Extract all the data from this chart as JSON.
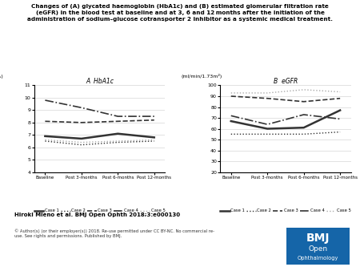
{
  "title": "Changes of (A) glycated haemoglobin (HbA1c) and (B) estimated glomerular filtration rate\n(eGFR) in the blood test at baseline and at 3, 6 and 12 months after the initiation of the\nadministration of sodium–glucose cotransporter 2 inhibitor as a systemic medical treatment.",
  "xticklabels": [
    "Baseline",
    "Post 3-months",
    "Post 6-months",
    "Post 12-months"
  ],
  "panel_A_title": "A  HbA1c",
  "panel_B_title": "B  eGFR",
  "panel_A_ylabel": "(%)",
  "panel_B_ylabel": "(ml/min/1.73m²)",
  "panel_A_ylim": [
    4,
    11
  ],
  "panel_B_ylim": [
    20,
    100
  ],
  "panel_A_yticks": [
    4,
    5,
    6,
    7,
    8,
    9,
    10,
    11
  ],
  "panel_B_yticks": [
    20,
    30,
    40,
    50,
    60,
    70,
    80,
    90,
    100
  ],
  "hba1c": {
    "case1": [
      6.9,
      6.7,
      7.1,
      6.8
    ],
    "case2": [
      6.5,
      6.2,
      6.4,
      6.5
    ],
    "case3": [
      8.1,
      8.0,
      8.1,
      8.2
    ],
    "case4": [
      9.8,
      9.2,
      8.5,
      8.5
    ],
    "case5": [
      6.6,
      6.4,
      6.5,
      6.6
    ]
  },
  "egfr": {
    "case1": [
      67,
      60,
      61,
      77
    ],
    "case2": [
      55,
      55,
      55,
      57
    ],
    "case3": [
      90,
      88,
      85,
      88
    ],
    "case4": [
      72,
      64,
      73,
      69
    ],
    "case5": [
      93,
      93,
      96,
      94
    ]
  },
  "legend_labels": [
    "Case 1",
    "Case 2",
    "Case 3",
    "Case 4",
    "Case 5"
  ],
  "line_styles": [
    {
      "color": "#333333",
      "linestyle": "-",
      "linewidth": 1.8,
      "marker": "None",
      "markersize": 0
    },
    {
      "color": "#333333",
      "linestyle": ":",
      "linewidth": 1.0,
      "marker": "None",
      "markersize": 0
    },
    {
      "color": "#333333",
      "linestyle": "--",
      "linewidth": 1.2,
      "marker": "None",
      "markersize": 0
    },
    {
      "color": "#333333",
      "linestyle": "-.",
      "linewidth": 1.2,
      "marker": "None",
      "markersize": 0
    },
    {
      "color": "#aaaaaa",
      "linestyle": ":",
      "linewidth": 1.0,
      "marker": "None",
      "markersize": 0
    }
  ],
  "author_text": "Hiroki Mieno et al. BMJ Open Ophth 2018;3:e000130",
  "copyright_text": "© Author(s) (or their employer(s)) 2018. Re-use permitted under CC BY-NC. No commercial re-\nuse. See rights and permissions. Published by BMJ.",
  "background_color": "#ffffff"
}
